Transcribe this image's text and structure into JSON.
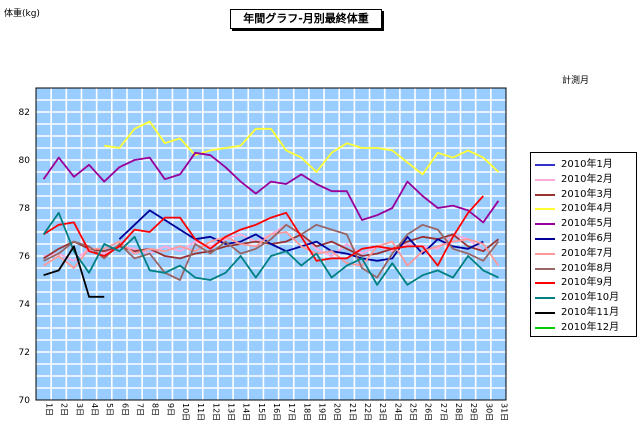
{
  "chart_data": {
    "type": "line",
    "title": "年間グラフ-月別最終体重",
    "ylabel": "体重(kg)",
    "xlabel": "計測月",
    "ylim": [
      70,
      83
    ],
    "yticks": [
      70,
      72,
      74,
      76,
      78,
      80,
      82
    ],
    "x": [
      "1日",
      "2日",
      "3日",
      "4日",
      "5日",
      "6日",
      "7日",
      "8日",
      "9日",
      "10日",
      "11日",
      "12日",
      "13日",
      "14日",
      "15日",
      "16日",
      "17日",
      "18日",
      "19日",
      "20日",
      "21日",
      "22日",
      "23日",
      "24日",
      "25日",
      "26日",
      "27日",
      "28日",
      "29日",
      "30日",
      "31日"
    ],
    "legend_position": "right",
    "grid": true,
    "series": [
      {
        "name": "2010年1月",
        "color": "#3333cc",
        "values": [
          null,
          null,
          null,
          null,
          null,
          null,
          null,
          null,
          null,
          null,
          null,
          null,
          null,
          null,
          null,
          null,
          null,
          null,
          null,
          null,
          null,
          null,
          null,
          null,
          null,
          null,
          null,
          null,
          null,
          null,
          null
        ]
      },
      {
        "name": "2010年2月",
        "color": "#ffaadd",
        "values": [
          76.0,
          76.1,
          75.8,
          76.3,
          76.1,
          76.4,
          76.3,
          76.1,
          76.4,
          76.2,
          76.6,
          76.4,
          76.7,
          76.9,
          76.6,
          76.9,
          77.3,
          76.9,
          76.3,
          76.0,
          76.5,
          76.1,
          76.4,
          76.2,
          76.5,
          76.4,
          76.3,
          76.9,
          76.7,
          76.2,
          null
        ]
      },
      {
        "name": "2010年3月",
        "color": "#993333",
        "values": [
          75.9,
          76.3,
          76.6,
          76.3,
          76.2,
          76.4,
          76.2,
          76.3,
          76.0,
          75.9,
          76.1,
          76.2,
          76.4,
          76.5,
          76.6,
          76.5,
          76.6,
          76.9,
          76.4,
          76.6,
          76.3,
          76.0,
          76.1,
          76.3,
          76.6,
          76.8,
          76.7,
          76.9,
          76.4,
          76.2,
          76.7
        ]
      },
      {
        "name": "2010年4月",
        "color": "#ffff33",
        "values": [
          null,
          null,
          null,
          null,
          80.6,
          80.5,
          81.3,
          81.6,
          80.7,
          80.9,
          80.2,
          80.4,
          80.5,
          80.6,
          81.3,
          81.3,
          80.4,
          80.1,
          79.5,
          80.3,
          80.7,
          80.5,
          80.5,
          80.4,
          79.9,
          79.4,
          80.3,
          80.1,
          80.4,
          80.1,
          79.5
        ]
      },
      {
        "name": "2010年5月",
        "color": "#990099",
        "values": [
          79.2,
          80.1,
          79.3,
          79.8,
          79.1,
          79.7,
          80.0,
          80.1,
          79.2,
          79.4,
          80.3,
          80.2,
          79.7,
          79.1,
          78.6,
          79.1,
          79.0,
          79.4,
          79.0,
          78.7,
          78.7,
          77.5,
          77.7,
          78.0,
          79.1,
          78.5,
          78.0,
          78.1,
          77.9,
          77.4,
          78.3
        ]
      },
      {
        "name": "2010年6月",
        "color": "#000099",
        "values": [
          null,
          null,
          null,
          null,
          null,
          76.7,
          77.3,
          77.9,
          77.5,
          77.1,
          76.7,
          76.8,
          76.5,
          76.6,
          76.9,
          76.5,
          76.2,
          76.4,
          76.6,
          76.2,
          76.1,
          75.9,
          75.8,
          75.9,
          76.8,
          76.1,
          76.7,
          76.4,
          76.3,
          76.6,
          null
        ]
      },
      {
        "name": "2010年7月",
        "color": "#ff9999",
        "values": [
          75.6,
          76.0,
          75.5,
          76.3,
          76.3,
          76.6,
          76.1,
          76.3,
          76.2,
          76.4,
          76.2,
          76.6,
          76.8,
          76.5,
          76.4,
          76.9,
          77.0,
          76.4,
          76.1,
          76.2,
          75.7,
          75.6,
          76.4,
          76.6,
          75.6,
          76.2,
          76.4,
          76.6,
          76.7,
          76.5,
          75.6
        ]
      },
      {
        "name": "2010年8月",
        "color": "#996666",
        "values": [
          75.8,
          76.1,
          76.6,
          76.4,
          75.9,
          76.5,
          75.9,
          76.1,
          75.3,
          75.0,
          76.5,
          76.1,
          76.6,
          76.1,
          76.3,
          76.7,
          77.3,
          76.9,
          77.3,
          77.1,
          76.9,
          75.5,
          75.1,
          76.1,
          76.9,
          77.3,
          77.1,
          76.3,
          76.1,
          75.8,
          76.6
        ]
      },
      {
        "name": "2010年9月",
        "color": "#ff0000",
        "values": [
          76.9,
          77.3,
          77.4,
          76.2,
          76.0,
          76.4,
          77.1,
          77.0,
          77.6,
          77.6,
          76.7,
          76.3,
          76.8,
          77.1,
          77.3,
          77.6,
          77.8,
          76.8,
          75.8,
          75.9,
          75.9,
          76.3,
          76.4,
          76.3,
          76.4,
          76.4,
          75.6,
          76.8,
          77.8,
          78.5,
          null
        ]
      },
      {
        "name": "2010年10月",
        "color": "#008080",
        "values": [
          76.9,
          77.8,
          76.2,
          75.3,
          76.5,
          76.2,
          76.8,
          75.4,
          75.3,
          75.6,
          75.1,
          75.0,
          75.3,
          76.0,
          75.1,
          76.0,
          76.2,
          75.6,
          76.1,
          75.1,
          75.6,
          75.9,
          74.8,
          75.7,
          74.8,
          75.2,
          75.4,
          75.1,
          76.0,
          75.4,
          75.1
        ]
      },
      {
        "name": "2010年11月",
        "color": "#000000",
        "values": [
          75.2,
          75.4,
          76.4,
          74.3,
          74.3,
          null,
          null,
          null,
          null,
          null,
          null,
          null,
          null,
          null,
          null,
          null,
          null,
          null,
          null,
          null,
          null,
          null,
          null,
          null,
          null,
          null,
          null,
          null,
          null,
          null,
          null
        ]
      },
      {
        "name": "2010年12月",
        "color": "#00cc00",
        "values": [
          null,
          null,
          null,
          null,
          null,
          null,
          null,
          null,
          null,
          null,
          null,
          null,
          null,
          null,
          null,
          null,
          null,
          null,
          null,
          null,
          null,
          null,
          null,
          null,
          null,
          null,
          null,
          null,
          null,
          null,
          null
        ]
      }
    ]
  },
  "colors": {
    "plot_bg": "#99ccff",
    "grid": "#ffffff",
    "axis": "#000000"
  }
}
